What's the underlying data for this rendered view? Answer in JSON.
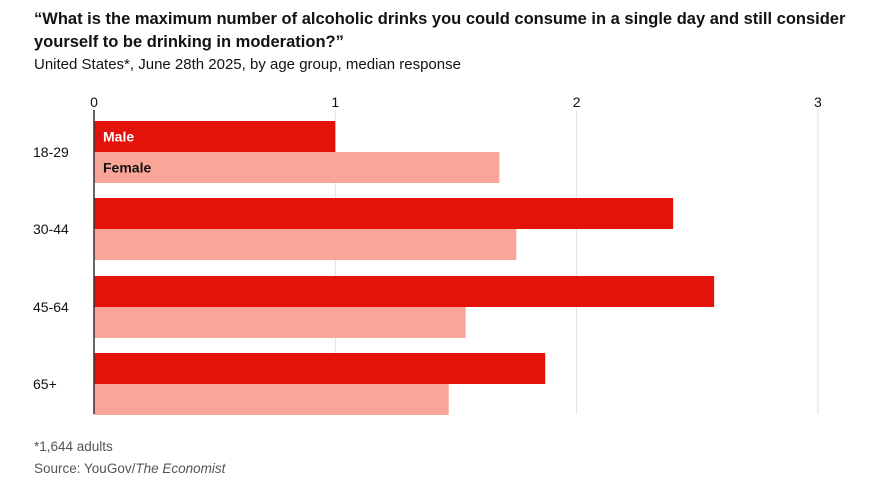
{
  "header": {
    "title": "“What is the maximum number of alcoholic drinks you could consume in a single day and still consider yourself to be drinking in moderation?”",
    "subtitle": "United States*, June 28th 2025, by age group, median response"
  },
  "footer": {
    "footnote": "*1,644 adults",
    "source_prefix": "Source: YouGov/",
    "source_publication": "The Economist"
  },
  "colors": {
    "male": "#e3120b",
    "female": "#f9a597",
    "grid": "#e0e0e0",
    "axis": "#333333",
    "male_label_text": "#ffffff",
    "female_label_text": "#121212"
  },
  "chart_data": {
    "type": "bar",
    "orientation": "horizontal",
    "categories": [
      "18-29",
      "30-44",
      "45-64",
      "65+"
    ],
    "series": [
      {
        "name": "Male",
        "values": [
          1.0,
          2.4,
          2.57,
          1.87
        ]
      },
      {
        "name": "Female",
        "values": [
          1.68,
          1.75,
          1.54,
          1.47
        ]
      }
    ],
    "xlim": [
      0,
      3
    ],
    "xticks": [
      "0",
      "1",
      "2",
      "3"
    ],
    "xaxis_position": "top",
    "legend": "inline labels on first category bars",
    "grid": true
  }
}
